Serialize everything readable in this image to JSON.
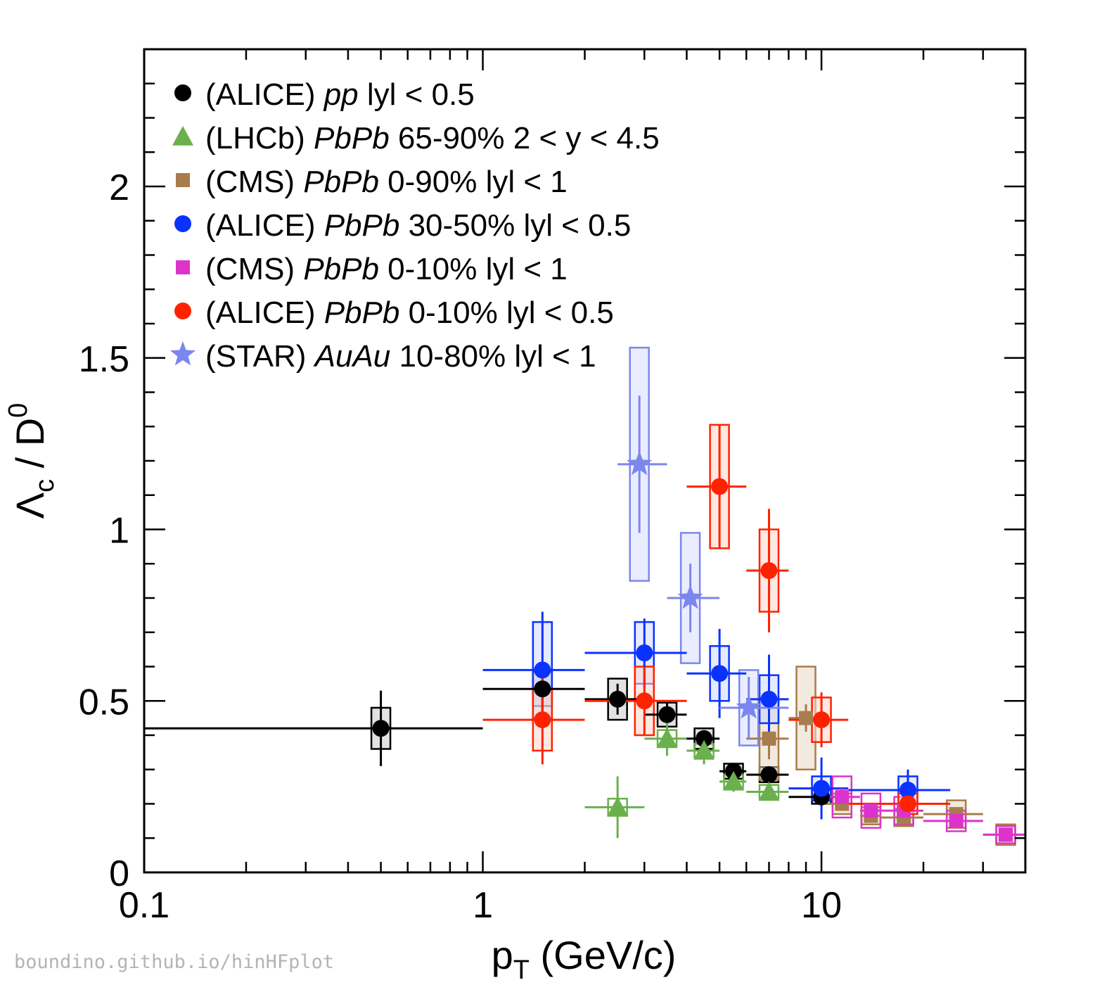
{
  "chart_data": {
    "type": "scatter",
    "xscale": "log",
    "xlim": [
      0.1,
      40
    ],
    "ylim": [
      0,
      2.4
    ],
    "xlabel_main": "p",
    "xlabel_sub": "T",
    "xlabel_rest": " (GeV/c)",
    "ylabel_main": "Λ",
    "ylabel_sub": "c",
    "ylabel_rest": " / D",
    "ylabel_sup": "0",
    "x_tick_labels": [
      {
        "value": 0.1,
        "label": "0.1"
      },
      {
        "value": 1,
        "label": "1"
      },
      {
        "value": 10,
        "label": "10"
      }
    ],
    "y_tick_labels": [
      {
        "value": 0,
        "label": "0"
      },
      {
        "value": 0.5,
        "label": "0.5"
      },
      {
        "value": 1,
        "label": "1"
      },
      {
        "value": 1.5,
        "label": "1.5"
      },
      {
        "value": 2,
        "label": "2"
      }
    ],
    "legend_position": "top-left",
    "watermark": "boundino.github.io/hinHFplot",
    "series": [
      {
        "name": "alice-pp",
        "legend_prefix": "(ALICE) ",
        "legend_italic": "pp",
        "legend_suffix": " lyl < 0.5",
        "marker": "circle",
        "color": "#000000",
        "box_fill": "#bfbfbf",
        "box_opacity": 0.45,
        "points": [
          {
            "x": 0.5,
            "xlo": 0.1,
            "xhi": 1,
            "y": 0.42,
            "estat": 0.11,
            "esys": 0.06
          },
          {
            "x": 1.5,
            "xlo": 1,
            "xhi": 2,
            "y": 0.535,
            "estat": 0.06,
            "esys": 0.05
          },
          {
            "x": 2.5,
            "xlo": 2,
            "xhi": 3,
            "y": 0.505,
            "estat": 0.045,
            "esys": 0.06
          },
          {
            "x": 3.5,
            "xlo": 3,
            "xhi": 4,
            "y": 0.46,
            "estat": 0.035,
            "esys": 0.035
          },
          {
            "x": 4.5,
            "xlo": 4,
            "xhi": 5,
            "y": 0.39,
            "estat": 0.025,
            "esys": 0.03
          },
          {
            "x": 5.5,
            "xlo": 5,
            "xhi": 6,
            "y": 0.295,
            "estat": 0.02,
            "esys": 0.022
          },
          {
            "x": 7,
            "xlo": 6,
            "xhi": 8,
            "y": 0.285,
            "estat": 0.02,
            "esys": 0.022
          },
          {
            "x": 10,
            "xlo": 8,
            "xhi": 12,
            "y": 0.22,
            "estat": 0.02,
            "esys": 0.02
          }
        ]
      },
      {
        "name": "lhcb-pbpb",
        "legend_prefix": "(LHCb) ",
        "legend_italic": "PbPb",
        "legend_suffix": " 65-90% 2 < y < 4.5",
        "marker": "triangle",
        "color": "#6ab04c",
        "box_fill": "none",
        "box_opacity": 0,
        "points": [
          {
            "x": 2.5,
            "xlo": 2,
            "xhi": 3,
            "y": 0.19,
            "estat": 0.09,
            "esys": 0.025
          },
          {
            "x": 3.5,
            "xlo": 3,
            "xhi": 4,
            "y": 0.39,
            "estat": 0.05,
            "esys": 0.025
          },
          {
            "x": 4.5,
            "xlo": 4,
            "xhi": 5,
            "y": 0.355,
            "estat": 0.04,
            "esys": 0.02
          },
          {
            "x": 5.5,
            "xlo": 5,
            "xhi": 6,
            "y": 0.265,
            "estat": 0.03,
            "esys": 0.02
          },
          {
            "x": 7,
            "xlo": 6,
            "xhi": 8,
            "y": 0.235,
            "estat": 0.025,
            "esys": 0.02
          }
        ]
      },
      {
        "name": "cms-pbpb-0-90",
        "legend_prefix": "(CMS) ",
        "legend_italic": "PbPb",
        "legend_suffix": " 0-90% lyl < 1",
        "marker": "square",
        "color": "#a87c4c",
        "box_fill": "#e6d3bf",
        "box_opacity": 0.5,
        "points": [
          {
            "x": 7,
            "xlo": 6,
            "xhi": 8,
            "y": 0.39,
            "estat": 0.06,
            "esys": 0.12
          },
          {
            "x": 9,
            "xlo": 8,
            "xhi": 10,
            "y": 0.45,
            "estat": 0.04,
            "esys": 0.15
          },
          {
            "x": 11.5,
            "xlo": 10,
            "xhi": 13,
            "y": 0.2,
            "estat": 0.02,
            "esys": 0.03
          },
          {
            "x": 14,
            "xlo": 13,
            "xhi": 15,
            "y": 0.165,
            "estat": 0.015,
            "esys": 0.025
          },
          {
            "x": 17.5,
            "xlo": 15,
            "xhi": 20,
            "y": 0.16,
            "estat": 0.015,
            "esys": 0.025
          },
          {
            "x": 25,
            "xlo": 20,
            "xhi": 30,
            "y": 0.17,
            "estat": 0.015,
            "esys": 0.04
          },
          {
            "x": 35,
            "xlo": 30,
            "xhi": 40,
            "y": 0.11,
            "estat": 0.01,
            "esys": 0.03
          }
        ]
      },
      {
        "name": "alice-pbpb-30-50",
        "legend_prefix": "(ALICE) ",
        "legend_italic": "PbPb",
        "legend_suffix": " 30-50% lyl < 0.5",
        "marker": "circle",
        "color": "#0a32ff",
        "box_fill": "#c8d0ff",
        "box_opacity": 0.45,
        "points": [
          {
            "x": 1.5,
            "xlo": 1,
            "xhi": 2,
            "y": 0.59,
            "estat": 0.17,
            "esys": 0.14
          },
          {
            "x": 3,
            "xlo": 2,
            "xhi": 4,
            "y": 0.64,
            "estat": 0.1,
            "esys": 0.09
          },
          {
            "x": 5,
            "xlo": 4,
            "xhi": 6,
            "y": 0.58,
            "estat": 0.13,
            "esys": 0.08
          },
          {
            "x": 7,
            "xlo": 6,
            "xhi": 8,
            "y": 0.505,
            "estat": 0.13,
            "esys": 0.07
          },
          {
            "x": 10,
            "xlo": 8,
            "xhi": 12,
            "y": 0.245,
            "estat": 0.09,
            "esys": 0.035
          },
          {
            "x": 18,
            "xlo": 12,
            "xhi": 24,
            "y": 0.24,
            "estat": 0.06,
            "esys": 0.04
          }
        ]
      },
      {
        "name": "cms-pbpb-0-10",
        "legend_prefix": "(CMS) ",
        "legend_italic": "PbPb",
        "legend_suffix": " 0-10% lyl < 1",
        "marker": "square",
        "color": "#dd33cc",
        "box_fill": "none",
        "box_opacity": 0,
        "points": [
          {
            "x": 11.5,
            "xlo": 10,
            "xhi": 13,
            "y": 0.22,
            "estat": 0.025,
            "esys": 0.06
          },
          {
            "x": 14,
            "xlo": 13,
            "xhi": 15,
            "y": 0.18,
            "estat": 0.02,
            "esys": 0.05
          },
          {
            "x": 17.5,
            "xlo": 15,
            "xhi": 20,
            "y": 0.18,
            "estat": 0.02,
            "esys": 0.04
          },
          {
            "x": 25,
            "xlo": 20,
            "xhi": 30,
            "y": 0.15,
            "estat": 0.015,
            "esys": 0.03
          },
          {
            "x": 35,
            "xlo": 30,
            "xhi": 40,
            "y": 0.11,
            "estat": 0.015,
            "esys": 0.025
          }
        ]
      },
      {
        "name": "alice-pbpb-0-10",
        "legend_prefix": "(ALICE) ",
        "legend_italic": "PbPb",
        "legend_suffix": " 0-10% lyl < 0.5",
        "marker": "circle",
        "color": "#ff2200",
        "box_fill": "#ffd5c8",
        "box_opacity": 0.55,
        "points": [
          {
            "x": 1.5,
            "xlo": 1,
            "xhi": 2,
            "y": 0.445,
            "estat": 0.13,
            "esys": 0.09
          },
          {
            "x": 3,
            "xlo": 2,
            "xhi": 4,
            "y": 0.5,
            "estat": 0.1,
            "esys": 0.1
          },
          {
            "x": 5,
            "xlo": 4,
            "xhi": 6,
            "y": 1.125,
            "estat": 0.18,
            "esys": 0.18
          },
          {
            "x": 7,
            "xlo": 6,
            "xhi": 8,
            "y": 0.88,
            "estat": 0.18,
            "esys": 0.12
          },
          {
            "x": 10,
            "xlo": 8,
            "xhi": 12,
            "y": 0.445,
            "estat": 0.08,
            "esys": 0.065
          },
          {
            "x": 18,
            "xlo": 12,
            "xhi": 24,
            "y": 0.2,
            "estat": 0.05,
            "esys": 0.03
          }
        ]
      },
      {
        "name": "star-auau",
        "legend_prefix": "(STAR) ",
        "legend_italic": "AuAu",
        "legend_suffix": " 10-80% lyl < 1",
        "marker": "star",
        "color": "#7b87ee",
        "box_fill": "#d5dbff",
        "box_opacity": 0.5,
        "points": [
          {
            "x": 2.9,
            "xlo": 2.5,
            "xhi": 3.5,
            "y": 1.19,
            "estat": 0.2,
            "esys": 0.34
          },
          {
            "x": 4.1,
            "xlo": 3.5,
            "xhi": 5,
            "y": 0.8,
            "estat": 0.1,
            "esys": 0.19
          },
          {
            "x": 6.1,
            "xlo": 5,
            "xhi": 8,
            "y": 0.48,
            "estat": 0.09,
            "esys": 0.11
          }
        ]
      }
    ]
  }
}
